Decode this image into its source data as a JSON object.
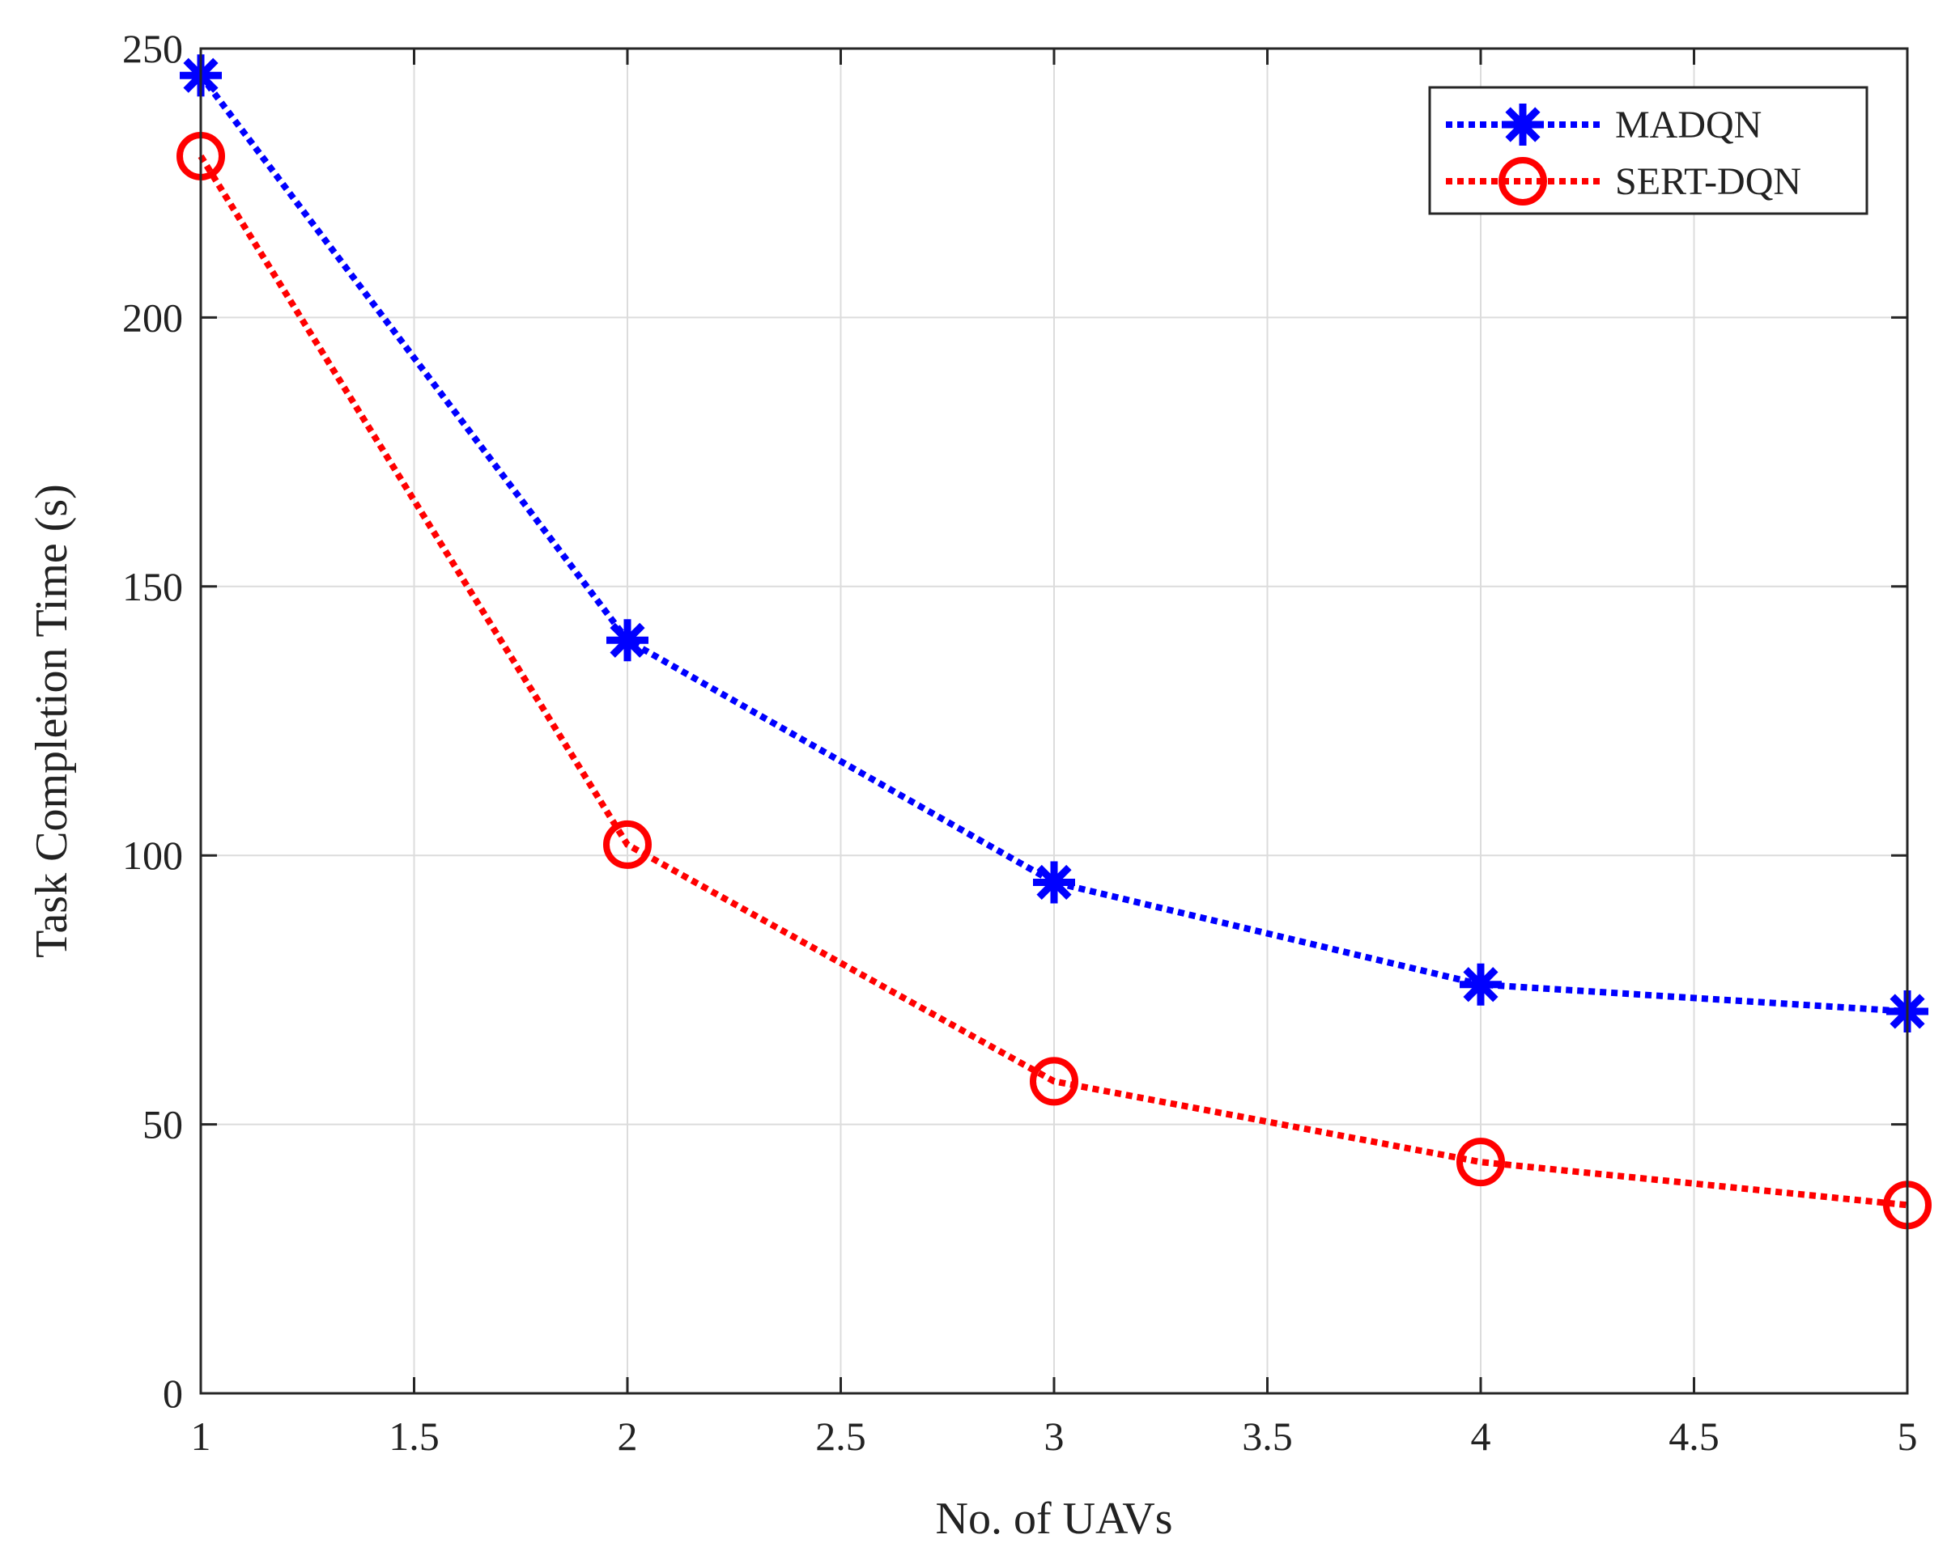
{
  "chart_data": {
    "type": "line",
    "title": "",
    "xlabel": "No. of UAVs",
    "ylabel": "Task Completion Time (s)",
    "xlim": [
      1,
      5
    ],
    "ylim": [
      0,
      250
    ],
    "xticks": [
      1,
      1.5,
      2,
      2.5,
      3,
      3.5,
      4,
      4.5,
      5
    ],
    "xtick_labels": [
      "1",
      "1.5",
      "2",
      "2.5",
      "3",
      "3.5",
      "4",
      "4.5",
      "5"
    ],
    "yticks": [
      0,
      50,
      100,
      150,
      200,
      250
    ],
    "ytick_labels": [
      "0",
      "50",
      "100",
      "150",
      "200",
      "250"
    ],
    "grid": true,
    "legend_position": "top-right",
    "x": [
      1,
      2,
      3,
      4,
      5
    ],
    "series": [
      {
        "name": "MADQN",
        "values": [
          245,
          140,
          95,
          76,
          71
        ],
        "color": "#0000ff",
        "marker": "asterisk",
        "line_style": "dotted"
      },
      {
        "name": "SERT-DQN",
        "values": [
          230,
          102,
          58,
          43,
          35
        ],
        "color": "#ff0000",
        "marker": "circle",
        "line_style": "dotted"
      }
    ]
  }
}
